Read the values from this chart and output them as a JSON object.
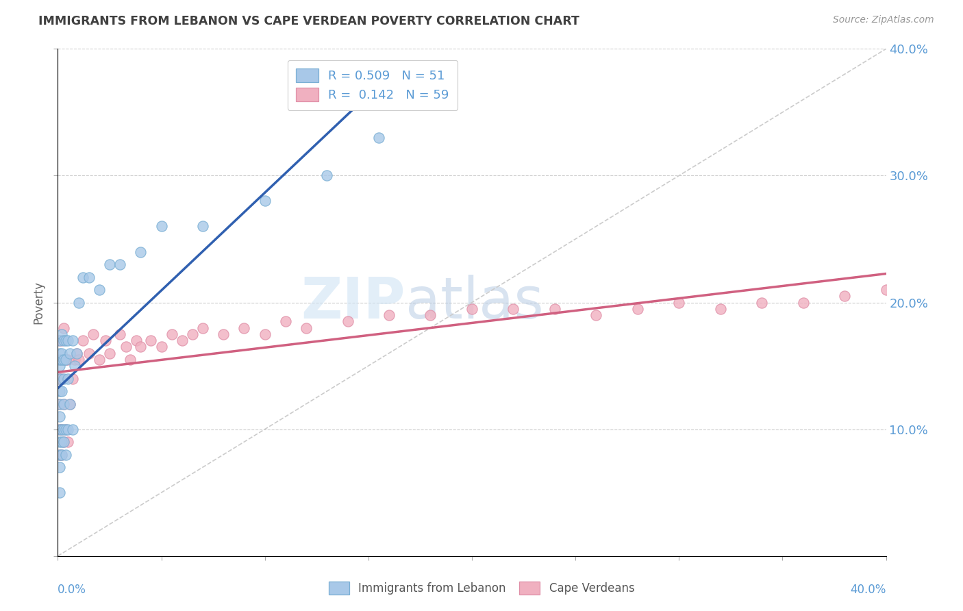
{
  "title": "IMMIGRANTS FROM LEBANON VS CAPE VERDEAN POVERTY CORRELATION CHART",
  "source": "Source: ZipAtlas.com",
  "ylabel": "Poverty",
  "legend_label1": "Immigrants from Lebanon",
  "legend_label2": "Cape Verdeans",
  "R1": 0.509,
  "N1": 51,
  "R2": 0.142,
  "N2": 59,
  "watermark_zip": "ZIP",
  "watermark_atlas": "atlas",
  "color_blue": "#a8c8e8",
  "color_pink": "#f0b0c0",
  "color_blue_edge": "#7aafd4",
  "color_pink_edge": "#e090a8",
  "color_line_blue": "#3060b0",
  "color_line_pink": "#d06080",
  "color_gray_line": "#cccccc",
  "color_label_blue": "#5b9bd5",
  "color_title": "#404040",
  "color_source": "#999999",
  "color_ylabel": "#666666",
  "xlim": [
    0.0,
    0.4
  ],
  "ylim": [
    0.0,
    0.4
  ],
  "lebanon_x": [
    0.001,
    0.001,
    0.001,
    0.001,
    0.001,
    0.001,
    0.001,
    0.001,
    0.001,
    0.001,
    0.001,
    0.001,
    0.001,
    0.002,
    0.002,
    0.002,
    0.002,
    0.002,
    0.002,
    0.002,
    0.003,
    0.003,
    0.003,
    0.003,
    0.003,
    0.003,
    0.004,
    0.004,
    0.004,
    0.004,
    0.005,
    0.005,
    0.005,
    0.006,
    0.006,
    0.007,
    0.007,
    0.008,
    0.009,
    0.01,
    0.012,
    0.015,
    0.02,
    0.025,
    0.03,
    0.04,
    0.05,
    0.07,
    0.1,
    0.13,
    0.155
  ],
  "lebanon_y": [
    0.05,
    0.07,
    0.08,
    0.09,
    0.1,
    0.11,
    0.12,
    0.13,
    0.14,
    0.15,
    0.155,
    0.16,
    0.17,
    0.08,
    0.09,
    0.1,
    0.13,
    0.155,
    0.16,
    0.175,
    0.09,
    0.1,
    0.12,
    0.14,
    0.155,
    0.17,
    0.08,
    0.1,
    0.155,
    0.17,
    0.1,
    0.14,
    0.17,
    0.12,
    0.16,
    0.1,
    0.17,
    0.15,
    0.16,
    0.2,
    0.22,
    0.22,
    0.21,
    0.23,
    0.23,
    0.24,
    0.26,
    0.26,
    0.28,
    0.3,
    0.33
  ],
  "capeverde_x": [
    0.001,
    0.001,
    0.001,
    0.001,
    0.001,
    0.001,
    0.002,
    0.002,
    0.002,
    0.002,
    0.003,
    0.003,
    0.003,
    0.003,
    0.004,
    0.004,
    0.005,
    0.005,
    0.006,
    0.007,
    0.008,
    0.009,
    0.01,
    0.012,
    0.015,
    0.017,
    0.02,
    0.023,
    0.025,
    0.03,
    0.033,
    0.035,
    0.038,
    0.04,
    0.045,
    0.05,
    0.055,
    0.06,
    0.065,
    0.07,
    0.08,
    0.09,
    0.1,
    0.11,
    0.12,
    0.14,
    0.16,
    0.18,
    0.2,
    0.22,
    0.24,
    0.26,
    0.28,
    0.3,
    0.32,
    0.34,
    0.36,
    0.38,
    0.4
  ],
  "capeverde_y": [
    0.08,
    0.1,
    0.12,
    0.14,
    0.155,
    0.17,
    0.08,
    0.1,
    0.14,
    0.17,
    0.09,
    0.12,
    0.155,
    0.18,
    0.1,
    0.155,
    0.09,
    0.155,
    0.12,
    0.14,
    0.155,
    0.16,
    0.155,
    0.17,
    0.16,
    0.175,
    0.155,
    0.17,
    0.16,
    0.175,
    0.165,
    0.155,
    0.17,
    0.165,
    0.17,
    0.165,
    0.175,
    0.17,
    0.175,
    0.18,
    0.175,
    0.18,
    0.175,
    0.185,
    0.18,
    0.185,
    0.19,
    0.19,
    0.195,
    0.195,
    0.195,
    0.19,
    0.195,
    0.2,
    0.195,
    0.2,
    0.2,
    0.205,
    0.21
  ]
}
